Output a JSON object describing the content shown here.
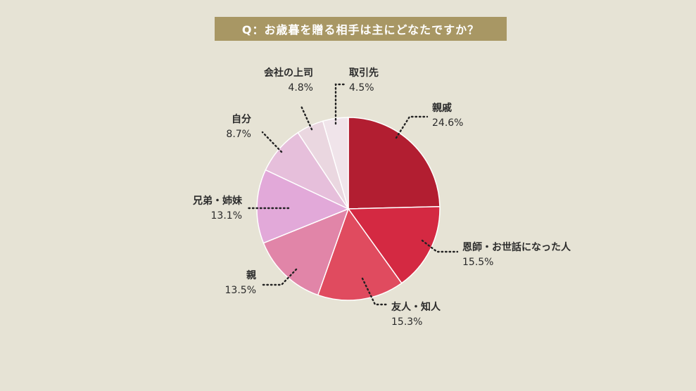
{
  "chart_data": {
    "type": "pie",
    "title": "Q：お歳暮を贈る相手は主にどなたですか？",
    "slices": [
      {
        "label": "親戚",
        "value": 24.6,
        "display": "24.6%",
        "color": "#b21e31"
      },
      {
        "label": "恩師・お世話になった人",
        "value": 15.5,
        "display": "15.5%",
        "color": "#d42942"
      },
      {
        "label": "友人・知人",
        "value": 15.3,
        "display": "15.3%",
        "color": "#e04b5f"
      },
      {
        "label": "親",
        "value": 13.5,
        "display": "13.5%",
        "color": "#e185a8"
      },
      {
        "label": "兄弟・姉妹",
        "value": 13.1,
        "display": "13.1%",
        "color": "#e2a9d9"
      },
      {
        "label": "自分",
        "value": 8.7,
        "display": "8.7%",
        "color": "#e6bfdb"
      },
      {
        "label": "会社の上司",
        "value": 4.8,
        "display": "4.8%",
        "color": "#ead7e0"
      },
      {
        "label": "取引先",
        "value": 4.5,
        "display": "4.5%",
        "color": "#f0e4ea"
      }
    ],
    "start": "12 o'clock",
    "direction": "clockwise",
    "legend": "none"
  }
}
